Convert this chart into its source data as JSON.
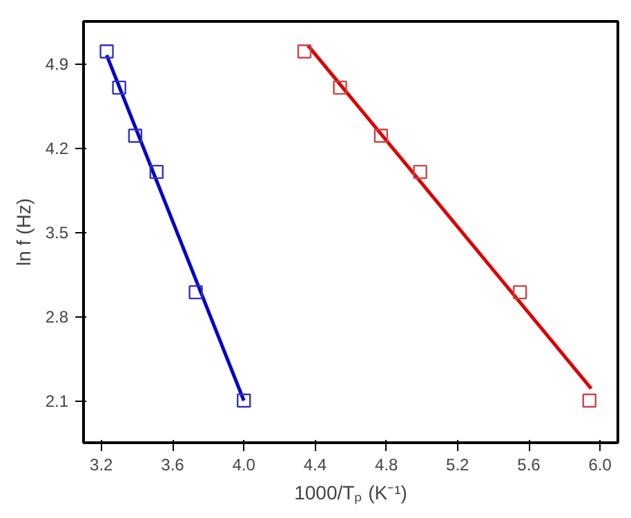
{
  "chart_data": {
    "type": "scatter",
    "xlabel": "1000/Tₚ (K⁻¹)",
    "ylabel": "ln f (Hz)",
    "xlim": [
      3.1,
      6.1
    ],
    "ylim": [
      1.75,
      5.25
    ],
    "xticks": [
      3.2,
      3.6,
      {
        "value": 4,
        "label": "4.0"
      },
      4.4,
      4.8,
      5.2,
      5.6,
      {
        "value": 6,
        "label": "6.0"
      }
    ],
    "yticks": [
      2.1,
      2.8,
      3.5,
      4.2,
      4.9
    ],
    "grid": false,
    "marker": "square",
    "series": [
      {
        "color": "#3333bb",
        "x": [
          3.23,
          3.3,
          3.39,
          3.51,
          3.73,
          4.0
        ],
        "values": [
          5.0,
          4.7,
          4.3,
          4.0,
          3.0,
          2.1
        ]
      },
      {
        "color": "#cc4444",
        "x": [
          4.34,
          4.54,
          4.77,
          4.99,
          5.55,
          5.94
        ],
        "values": [
          5.0,
          4.7,
          4.3,
          4.0,
          3.0,
          2.1
        ]
      },
      {
        "type": "line",
        "marker": "none",
        "color": "#0000cc",
        "x": [
          3.23,
          4.0
        ],
        "values": [
          4.97,
          2.1
        ]
      },
      {
        "type": "line",
        "marker": "none",
        "color": "#dd0000",
        "x": [
          4.36,
          5.95
        ],
        "values": [
          5.05,
          2.2
        ]
      }
    ]
  }
}
